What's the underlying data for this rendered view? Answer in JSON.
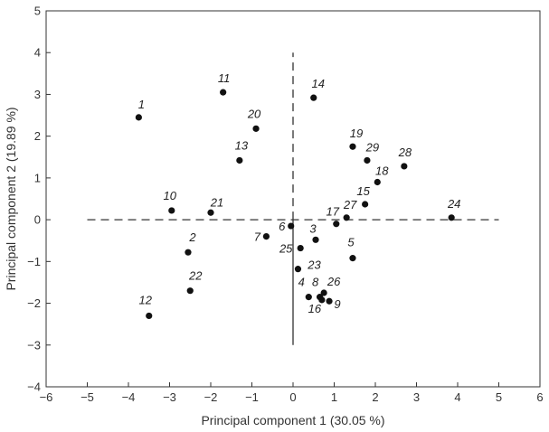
{
  "chart_data": {
    "type": "scatter",
    "xlabel": "Principal component 1 (30.05 %)",
    "ylabel": "Principal component 2 (19.89 %)",
    "xlim": [
      -6,
      6
    ],
    "ylim": [
      -4,
      5
    ],
    "x_ticks": [
      "−6",
      "−5",
      "−4",
      "−3",
      "−2",
      "−1",
      "0",
      "1",
      "2",
      "3",
      "4",
      "5",
      "6"
    ],
    "y_ticks": [
      "5",
      "4",
      "3",
      "2",
      "1",
      "0",
      "−1",
      "−2",
      "−3",
      "−4"
    ],
    "grid": false,
    "reference_lines": {
      "horizontal": {
        "y": 0,
        "x_range": [
          -5,
          5
        ],
        "style": "dashed"
      },
      "vertical": {
        "x": 0,
        "upper_dashed": [
          0,
          4
        ],
        "lower_solid": [
          -3,
          0
        ]
      }
    },
    "points": [
      {
        "label": "1",
        "x": -3.75,
        "y": 2.45
      },
      {
        "label": "2",
        "x": -2.55,
        "y": -0.78
      },
      {
        "label": "3",
        "x": 0.55,
        "y": -0.48
      },
      {
        "label": "4",
        "x": 0.38,
        "y": -1.85
      },
      {
        "label": "5",
        "x": 1.45,
        "y": -0.92
      },
      {
        "label": "6",
        "x": -0.05,
        "y": -0.15
      },
      {
        "label": "7",
        "x": -0.65,
        "y": -0.4
      },
      {
        "label": "8",
        "x": 0.65,
        "y": -1.85
      },
      {
        "label": "9",
        "x": 0.88,
        "y": -1.95
      },
      {
        "label": "10",
        "x": -2.95,
        "y": 0.22
      },
      {
        "label": "11",
        "x": -1.7,
        "y": 3.05
      },
      {
        "label": "12",
        "x": -3.5,
        "y": -2.3
      },
      {
        "label": "13",
        "x": -1.3,
        "y": 1.42
      },
      {
        "label": "14",
        "x": 0.5,
        "y": 2.92
      },
      {
        "label": "15",
        "x": 1.75,
        "y": 0.37
      },
      {
        "label": "16",
        "x": 0.7,
        "y": -1.92
      },
      {
        "label": "17",
        "x": 1.05,
        "y": -0.1
      },
      {
        "label": "18",
        "x": 2.05,
        "y": 0.9
      },
      {
        "label": "19",
        "x": 1.45,
        "y": 1.75
      },
      {
        "label": "20",
        "x": -0.9,
        "y": 2.18
      },
      {
        "label": "21",
        "x": -2.0,
        "y": 0.17
      },
      {
        "label": "22",
        "x": -2.5,
        "y": -1.7
      },
      {
        "label": "23",
        "x": 0.12,
        "y": -1.18
      },
      {
        "label": "24",
        "x": 3.85,
        "y": 0.05
      },
      {
        "label": "25",
        "x": 0.18,
        "y": -0.68
      },
      {
        "label": "26",
        "x": 0.75,
        "y": -1.75
      },
      {
        "label": "27",
        "x": 1.3,
        "y": 0.05
      },
      {
        "label": "28",
        "x": 2.7,
        "y": 1.28
      },
      {
        "label": "29",
        "x": 1.8,
        "y": 1.42
      }
    ]
  }
}
